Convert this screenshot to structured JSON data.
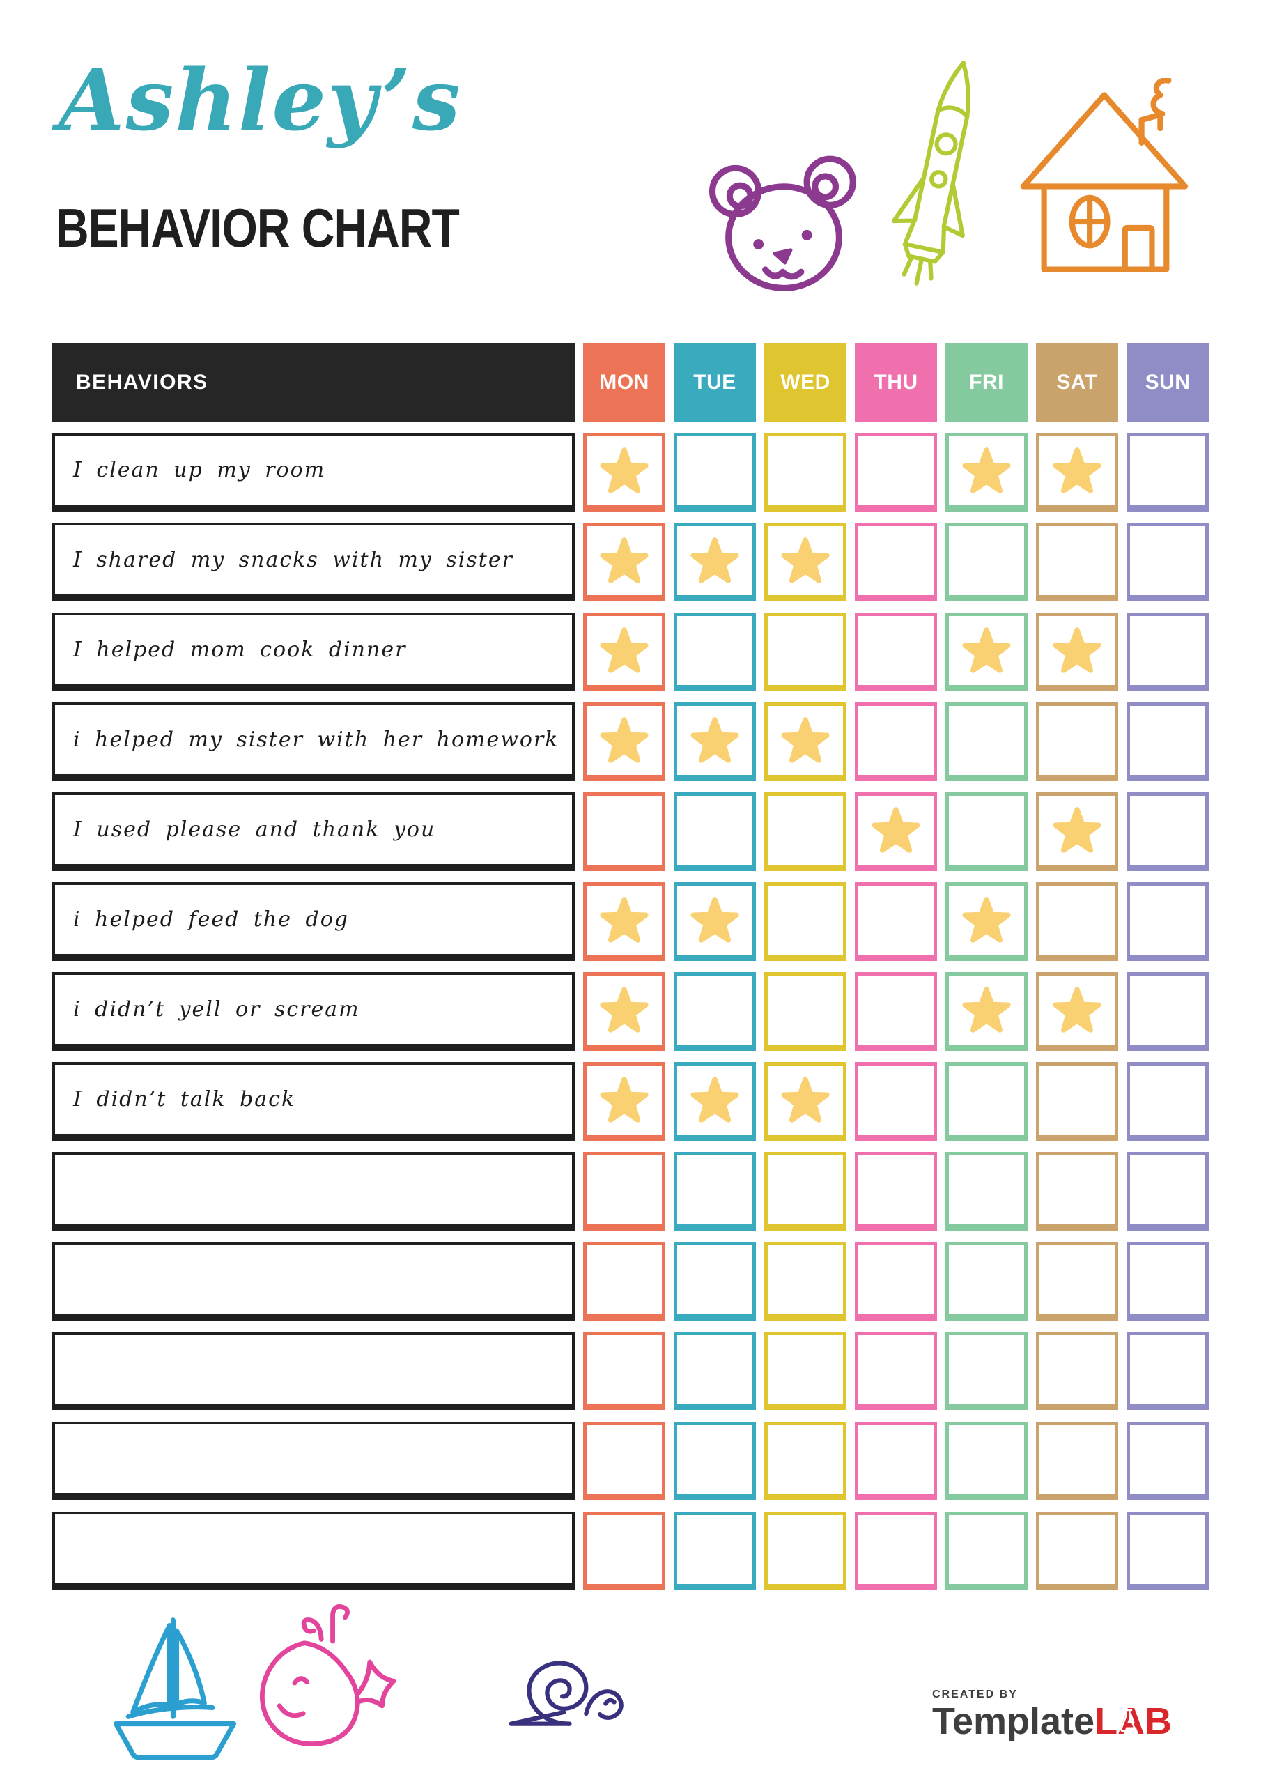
{
  "page": {
    "title_script": "Ashley’s",
    "title_script_color": "#39A9B8",
    "title_main": "BEHAVIOR CHART",
    "title_main_color": "#1F1F1F"
  },
  "table": {
    "behaviors_header": "BEHAVIORS",
    "behaviors_bg": "#262626",
    "label_border_color": "#1F1F1F",
    "star_color": "#F9D173",
    "days": [
      {
        "label": "MON",
        "color": "#EC7355"
      },
      {
        "label": "TUE",
        "color": "#3AABBE"
      },
      {
        "label": "WED",
        "color": "#DFC52F"
      },
      {
        "label": "THU",
        "color": "#F06FAD"
      },
      {
        "label": "FRI",
        "color": "#85C99E"
      },
      {
        "label": "SAT",
        "color": "#C9A36B"
      },
      {
        "label": "SUN",
        "color": "#8F8CC6"
      }
    ],
    "rows": [
      {
        "label": "I clean up my room",
        "stars": [
          0,
          4,
          5
        ]
      },
      {
        "label": "I shared my snacks with my sister",
        "stars": [
          0,
          1,
          2
        ]
      },
      {
        "label": "I helped mom cook dinner",
        "stars": [
          0,
          4,
          5
        ]
      },
      {
        "label": "i helped my sister with her homework",
        "stars": [
          0,
          1,
          2
        ]
      },
      {
        "label": "I used please and thank you",
        "stars": [
          3,
          5
        ]
      },
      {
        "label": "i helped feed the dog",
        "stars": [
          0,
          1,
          4
        ]
      },
      {
        "label": "i didn’t yell or scream",
        "stars": [
          0,
          4,
          5
        ]
      },
      {
        "label": "I didn’t talk back",
        "stars": [
          0,
          1,
          2
        ]
      },
      {
        "label": "",
        "stars": []
      },
      {
        "label": "",
        "stars": []
      },
      {
        "label": "",
        "stars": []
      },
      {
        "label": "",
        "stars": []
      },
      {
        "label": "",
        "stars": []
      }
    ]
  },
  "decorations": {
    "items": [
      {
        "key": "bear",
        "name": "bear-doodle",
        "color": "#8B3A8F"
      },
      {
        "key": "rocket",
        "name": "rocket-doodle",
        "color": "#B2CB35"
      },
      {
        "key": "house",
        "name": "house-doodle",
        "color": "#E78A2E"
      },
      {
        "key": "boat",
        "name": "sailboat-doodle",
        "color": "#2B9FD0"
      },
      {
        "key": "whale",
        "name": "whale-doodle",
        "color": "#E2459B"
      },
      {
        "key": "snail",
        "name": "snail-doodle",
        "color": "#38327E"
      }
    ]
  },
  "footer": {
    "created_by": "CREATED BY",
    "created_by_color": "#3E3E3E",
    "brand_first": "Template",
    "brand_first_color": "#3E3E3E",
    "brand_second": "LAB",
    "brand_second_color": "#D8262C"
  }
}
